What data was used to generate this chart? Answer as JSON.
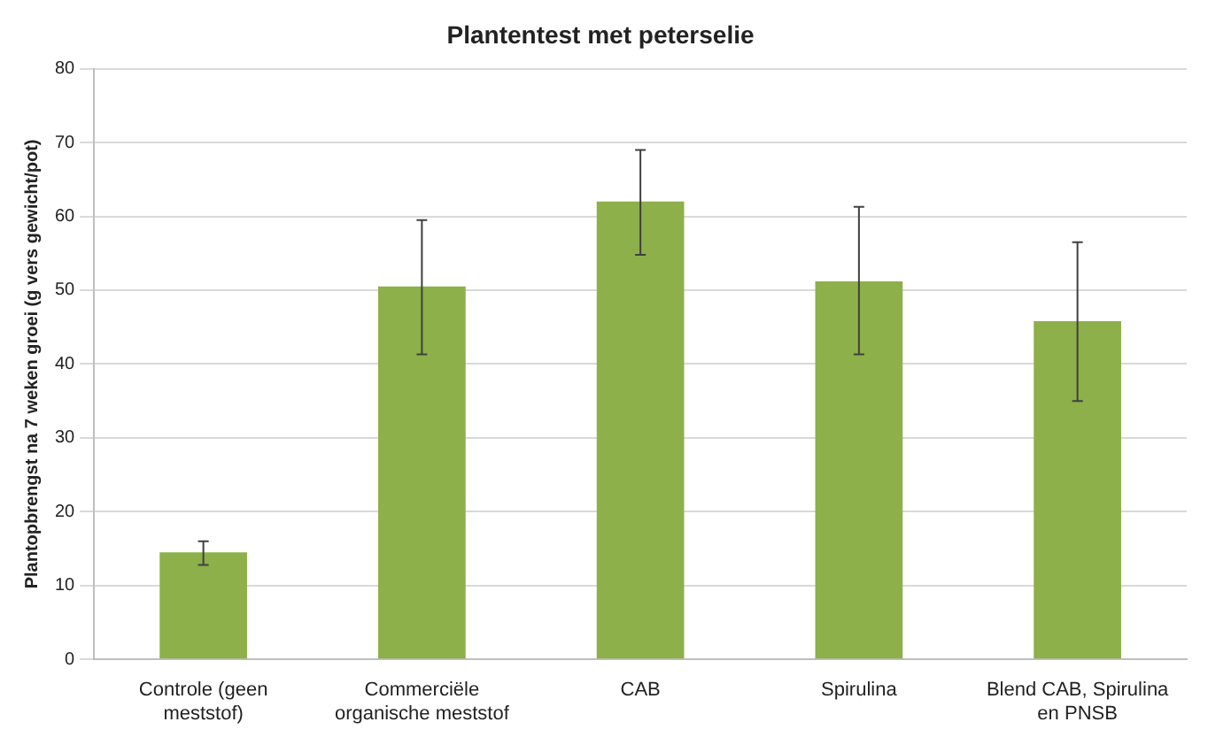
{
  "chart_data": {
    "type": "bar",
    "title": "Plantentest met peterselie",
    "ylabel": "Plantopbrengst na 7 weken groei (g vers gewicht/pot)",
    "categories": [
      "Controle (geen meststof)",
      "Commerciële organische meststof",
      "CAB",
      "Spirulina",
      "Blend CAB, Spirulina en PNSB"
    ],
    "values": [
      14.5,
      50.5,
      62,
      51.2,
      45.8
    ],
    "errors": [
      [
        12.8,
        16
      ],
      [
        41.3,
        59.5
      ],
      [
        54.8,
        69
      ],
      [
        41.3,
        61.3
      ],
      [
        35,
        56.5
      ]
    ],
    "color": "#8db04a",
    "ylim": [
      0,
      80
    ],
    "yticks": [
      0,
      10,
      20,
      30,
      40,
      50,
      60,
      70,
      80
    ],
    "grid": "y",
    "legend": false
  }
}
